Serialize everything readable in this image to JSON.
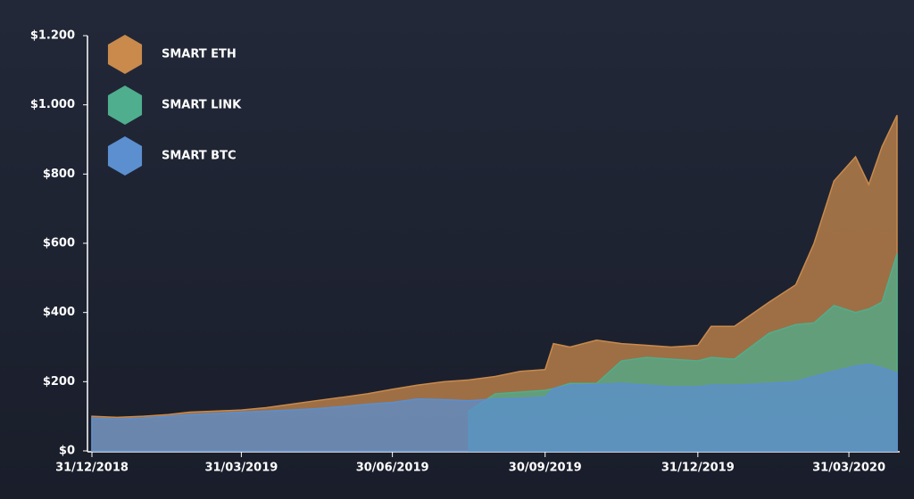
{
  "chart_data": {
    "type": "area",
    "x": [
      "2018-12-31",
      "2019-01-15",
      "2019-01-31",
      "2019-02-15",
      "2019-02-28",
      "2019-03-15",
      "2019-03-31",
      "2019-04-15",
      "2019-04-30",
      "2019-05-15",
      "2019-05-31",
      "2019-06-15",
      "2019-06-30",
      "2019-07-15",
      "2019-07-31",
      "2019-08-15",
      "2019-08-31",
      "2019-09-15",
      "2019-09-30",
      "2019-10-05",
      "2019-10-15",
      "2019-10-31",
      "2019-11-15",
      "2019-11-30",
      "2019-12-15",
      "2019-12-31",
      "2020-01-08",
      "2020-01-22",
      "2020-02-12",
      "2020-02-28",
      "2020-03-10",
      "2020-03-22",
      "2020-04-04",
      "2020-04-12",
      "2020-04-20",
      "2020-04-29"
    ],
    "series": [
      {
        "name": "SMART ETH",
        "color": "#c98a4c",
        "values": [
          100,
          97,
          100,
          105,
          112,
          115,
          118,
          125,
          135,
          145,
          155,
          165,
          178,
          190,
          200,
          205,
          215,
          230,
          235,
          310,
          300,
          320,
          310,
          305,
          300,
          305,
          360,
          360,
          430,
          480,
          600,
          780,
          850,
          770,
          880,
          970
        ]
      },
      {
        "name": "SMART LINK",
        "color": "#4fae8d",
        "values": [
          null,
          null,
          null,
          null,
          null,
          null,
          null,
          null,
          null,
          null,
          null,
          null,
          null,
          null,
          null,
          115,
          165,
          170,
          175,
          180,
          195,
          195,
          260,
          270,
          265,
          260,
          270,
          265,
          340,
          365,
          370,
          420,
          400,
          410,
          430,
          570
        ]
      },
      {
        "name": "SMART BTC",
        "color": "#5b8fd0",
        "values": [
          95,
          92,
          95,
          100,
          105,
          108,
          112,
          115,
          118,
          122,
          128,
          135,
          140,
          150,
          148,
          145,
          150,
          152,
          155,
          180,
          190,
          192,
          195,
          190,
          185,
          185,
          190,
          190,
          195,
          200,
          215,
          230,
          245,
          250,
          240,
          225
        ]
      }
    ],
    "xlim": [
      "2018-12-31",
      "2020-04-29"
    ],
    "xticks": [
      {
        "value": "2018-12-31",
        "label": "31/12/2018"
      },
      {
        "value": "2019-03-31",
        "label": "31/03/2019"
      },
      {
        "value": "2019-06-30",
        "label": "30/06/2019"
      },
      {
        "value": "2019-09-30",
        "label": "30/09/2019"
      },
      {
        "value": "2019-12-31",
        "label": "31/12/2019"
      },
      {
        "value": "2020-03-31",
        "label": "31/03/2020"
      }
    ],
    "ylim": [
      0,
      1200
    ],
    "yticks": [
      {
        "value": 0,
        "label": "$0"
      },
      {
        "value": 200,
        "label": "$200"
      },
      {
        "value": 400,
        "label": "$400"
      },
      {
        "value": 600,
        "label": "$600"
      },
      {
        "value": 800,
        "label": "$800"
      },
      {
        "value": 1000,
        "label": "$1.000"
      },
      {
        "value": 1200,
        "label": "$1.200"
      }
    ],
    "legend": "top-left"
  }
}
